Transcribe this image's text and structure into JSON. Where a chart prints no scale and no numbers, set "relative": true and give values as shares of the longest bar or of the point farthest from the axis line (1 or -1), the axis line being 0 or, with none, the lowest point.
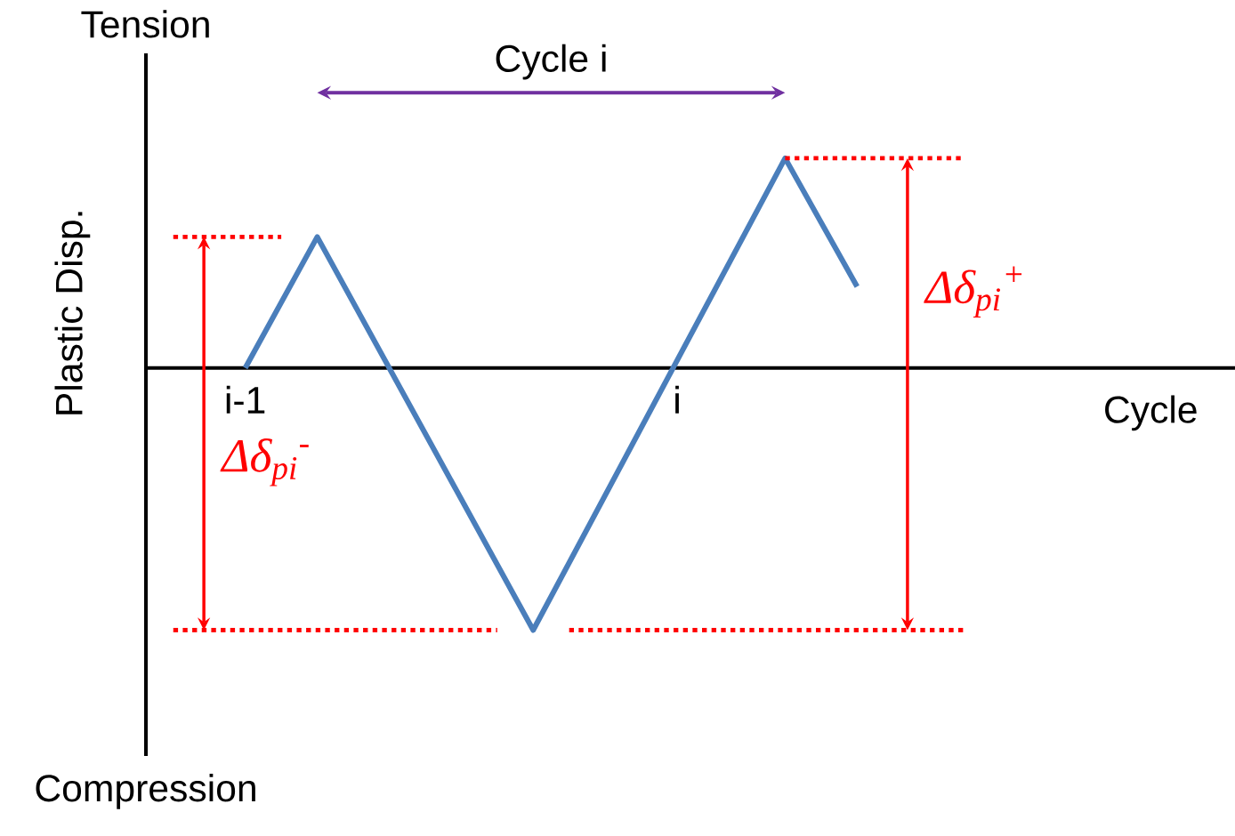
{
  "chart_data": {
    "type": "line",
    "relative": true,
    "xlabel": "Cycle",
    "ylabel": "Plastic Disp.",
    "categories": [
      null,
      null,
      "i-1",
      null,
      null,
      null,
      null,
      null,
      null,
      null,
      null,
      null,
      null,
      null,
      "i",
      null,
      null,
      null,
      null,
      null,
      null,
      null,
      null
    ],
    "series": [
      {
        "color": "#4a7ebb",
        "values": [
          null,
          null,
          0,
          null,
          0.5,
          null,
          null,
          null,
          null,
          null,
          -1,
          null,
          null,
          null,
          null,
          null,
          null,
          0.8,
          null,
          0.31,
          null,
          null,
          null
        ]
      },
      {
        "color": "#ff0000",
        "line_style": "dotted",
        "values": [
          0.5,
          null,
          null,
          0.5,
          null,
          null,
          null,
          null,
          null,
          null,
          null,
          null,
          null,
          null,
          null,
          null,
          null,
          null,
          null,
          null,
          null,
          null,
          null
        ]
      },
      {
        "color": "#ff0000",
        "line_style": "dotted",
        "values": [
          -1,
          null,
          null,
          null,
          null,
          null,
          null,
          null,
          null,
          -1,
          null,
          null,
          null,
          null,
          null,
          null,
          null,
          null,
          null,
          null,
          null,
          null,
          null
        ]
      },
      {
        "color": "#ff0000",
        "line_style": "dotted",
        "values": [
          null,
          null,
          null,
          null,
          null,
          null,
          null,
          null,
          null,
          null,
          null,
          -1,
          null,
          null,
          null,
          null,
          null,
          null,
          null,
          null,
          null,
          null,
          -1
        ]
      },
      {
        "color": "#ff0000",
        "line_style": "dotted",
        "values": [
          null,
          null,
          null,
          null,
          null,
          null,
          null,
          null,
          null,
          null,
          null,
          null,
          null,
          null,
          null,
          null,
          null,
          0.8,
          null,
          null,
          null,
          null,
          0.8
        ]
      }
    ],
    "annotations": [
      "Cycle i",
      "Δδ$_{pi}$$^{-}$",
      "Δδ$_{pi}$$^{+}$",
      "Tension",
      "Compression"
    ]
  }
}
